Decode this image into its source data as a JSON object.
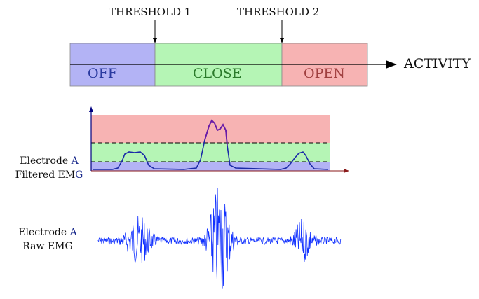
{
  "thresholds": [
    "THRESHOLD 1",
    "THRESHOLD 2"
  ],
  "zones": [
    {
      "label": "OFF",
      "fill": "#b3b3f5",
      "text_color": "#2a3aa0"
    },
    {
      "label": "CLOSE",
      "fill": "#b5f5b5",
      "text_color": "#2a7a2a"
    },
    {
      "label": "OPEN",
      "fill": "#f7b3b3",
      "text_color": "#a04040"
    }
  ],
  "axis_label": "ACTIVITY",
  "filtered": {
    "line1_prefix": "Electrode ",
    "line1_letter": "A",
    "line2_prefix": "Filtered EM",
    "line2_letter": "G"
  },
  "raw": {
    "line1_prefix": "Electrode ",
    "line1_letter": "A",
    "line2": "Raw EMG"
  },
  "colors": {
    "signal": "#1a2aa8",
    "peak": "#6a1aa8",
    "axis": "#000080",
    "dashed": "#000000",
    "raw": "#1030ff"
  }
}
